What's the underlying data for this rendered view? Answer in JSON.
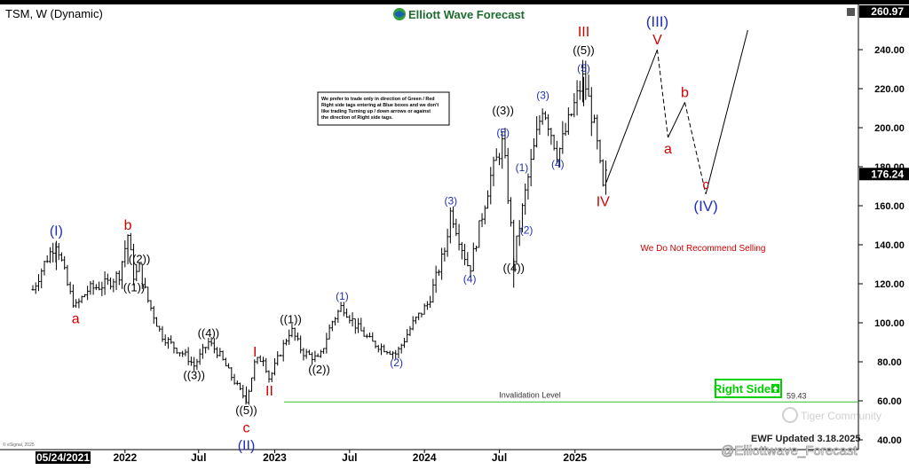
{
  "header": {
    "symbol": "TSM, W (Dynamic)",
    "brand": "Elliott Wave Forecast",
    "current_price": "176.24",
    "top_price": "260.97"
  },
  "notes": {
    "info_box": [
      "We prefer to trade only in direction of Green / Red",
      "Right side tags entering at Blue boxes and we don't",
      "like trading Turning up / down arrows or against",
      "the direction of Right side tags."
    ],
    "not_recommend": "We Do Not Recommend Selling",
    "invalidation_label": "Invalidation Level",
    "invalidation_value": "59.43",
    "right_side_tag": "Right Side",
    "updated": "EWF Updated 3.18.2025",
    "watermark_tiger": "Tiger Community",
    "watermark_handle": "@Elliottwave_Forecast",
    "start_date": "05/24/2021",
    "copyright": "© eSignal, 2025"
  },
  "colors": {
    "blue": "#1f2fb8",
    "red": "#d20000",
    "black": "#000000",
    "green": "#00d000",
    "invalidation": "#30c030"
  },
  "chart_data": {
    "type": "line",
    "title": "TSM, W (Dynamic)",
    "y_ticks": [
      40,
      60,
      80,
      100,
      120,
      140,
      160,
      180,
      200,
      220,
      240
    ],
    "ylim": [
      40,
      262
    ],
    "x_ticks": [
      "2022",
      "Jul",
      "2023",
      "Jul",
      "2024",
      "Jul",
      "2025"
    ],
    "price_path": [
      {
        "x": "2021-05-24",
        "y": 117
      },
      {
        "x": "2021-06-20",
        "y": 130
      },
      {
        "x": "2021-07-20",
        "y": 142
      },
      {
        "x": "2021-08-20",
        "y": 116
      },
      {
        "x": "2021-09-05",
        "y": 108
      },
      {
        "x": "2021-10-05",
        "y": 117
      },
      {
        "x": "2021-11-20",
        "y": 120
      },
      {
        "x": "2021-12-20",
        "y": 125
      },
      {
        "x": "2022-01-10",
        "y": 145
      },
      {
        "x": "2022-01-25",
        "y": 123
      },
      {
        "x": "2022-02-07",
        "y": 128
      },
      {
        "x": "2022-02-25",
        "y": 113
      },
      {
        "x": "2022-04-01",
        "y": 94
      },
      {
        "x": "2022-05-05",
        "y": 87
      },
      {
        "x": "2022-06-01",
        "y": 83
      },
      {
        "x": "2022-06-20",
        "y": 78
      },
      {
        "x": "2022-07-25",
        "y": 90
      },
      {
        "x": "2022-08-20",
        "y": 84
      },
      {
        "x": "2022-09-20",
        "y": 72
      },
      {
        "x": "2022-10-25",
        "y": 60
      },
      {
        "x": "2022-11-15",
        "y": 80
      },
      {
        "x": "2022-12-05",
        "y": 82
      },
      {
        "x": "2022-12-20",
        "y": 71
      },
      {
        "x": "2023-01-20",
        "y": 87
      },
      {
        "x": "2023-02-10",
        "y": 97
      },
      {
        "x": "2023-03-10",
        "y": 85
      },
      {
        "x": "2023-04-20",
        "y": 81
      },
      {
        "x": "2023-05-20",
        "y": 100
      },
      {
        "x": "2023-06-15",
        "y": 109
      },
      {
        "x": "2023-07-20",
        "y": 98
      },
      {
        "x": "2023-08-25",
        "y": 90
      },
      {
        "x": "2023-10-25",
        "y": 84
      },
      {
        "x": "2023-12-05",
        "y": 100
      },
      {
        "x": "2024-01-10",
        "y": 110
      },
      {
        "x": "2024-02-20",
        "y": 138
      },
      {
        "x": "2024-03-05",
        "y": 158
      },
      {
        "x": "2024-04-05",
        "y": 136
      },
      {
        "x": "2024-04-20",
        "y": 127
      },
      {
        "x": "2024-06-10",
        "y": 175
      },
      {
        "x": "2024-07-10",
        "y": 193
      },
      {
        "x": "2024-08-05",
        "y": 133
      },
      {
        "x": "2024-09-05",
        "y": 170
      },
      {
        "x": "2024-10-15",
        "y": 212
      },
      {
        "x": "2024-11-20",
        "y": 186
      },
      {
        "x": "2025-01-22",
        "y": 226
      },
      {
        "x": "2025-02-20",
        "y": 197
      },
      {
        "x": "2025-03-10",
        "y": 168
      },
      {
        "x": "2025-03-18",
        "y": 176.24
      }
    ],
    "projection": [
      {
        "x": "2025-03-18",
        "y": 172
      },
      {
        "x": "2025-07-20",
        "y": 240
      },
      {
        "x": "2025-08-15",
        "y": 195
      },
      {
        "x": "2025-09-25",
        "y": 213
      },
      {
        "x": "2025-11-15",
        "y": 166
      },
      {
        "x": "2026-02-25",
        "y": 250
      }
    ],
    "projection_dashed_segments": [
      1,
      3
    ],
    "invalidation_level": 59.43,
    "wave_labels": [
      {
        "text": "(I)",
        "x": "2021-07-20",
        "y": 142,
        "color": "blue",
        "pos": "above",
        "size": 16
      },
      {
        "text": "a",
        "x": "2021-09-05",
        "y": 108,
        "color": "red",
        "pos": "below",
        "size": 16
      },
      {
        "text": "b",
        "x": "2022-01-10",
        "y": 145,
        "color": "red",
        "pos": "above",
        "size": 16
      },
      {
        "text": "((1))",
        "x": "2022-01-25",
        "y": 123,
        "color": "black",
        "pos": "below",
        "size": 13
      },
      {
        "text": "((2))",
        "x": "2022-02-07",
        "y": 128,
        "color": "black",
        "pos": "above",
        "size": 13
      },
      {
        "text": "((3))",
        "x": "2022-06-20",
        "y": 78,
        "color": "black",
        "pos": "below",
        "size": 13
      },
      {
        "text": "((4))",
        "x": "2022-07-25",
        "y": 90,
        "color": "black",
        "pos": "above",
        "size": 13
      },
      {
        "text": "((5))",
        "x": "2022-10-25",
        "y": 60,
        "color": "black",
        "pos": "below",
        "size": 13
      },
      {
        "text": "c",
        "x": "2022-10-25",
        "y": 52,
        "color": "red",
        "pos": "below",
        "size": 16
      },
      {
        "text": "(II)",
        "x": "2022-10-25",
        "y": 43,
        "color": "blue",
        "pos": "below",
        "size": 16
      },
      {
        "text": "I",
        "x": "2022-11-15",
        "y": 80,
        "color": "red",
        "pos": "above",
        "size": 16
      },
      {
        "text": "II",
        "x": "2022-12-20",
        "y": 71,
        "color": "red",
        "pos": "below",
        "size": 16
      },
      {
        "text": "((1))",
        "x": "2023-02-10",
        "y": 97,
        "color": "black",
        "pos": "above",
        "size": 13
      },
      {
        "text": "((2))",
        "x": "2023-04-20",
        "y": 81,
        "color": "black",
        "pos": "below",
        "size": 13
      },
      {
        "text": "(1)",
        "x": "2023-06-15",
        "y": 109,
        "color": "blue",
        "pos": "above",
        "size": 12
      },
      {
        "text": "(2)",
        "x": "2023-10-25",
        "y": 84,
        "color": "blue",
        "pos": "below",
        "size": 12
      },
      {
        "text": "(3)",
        "x": "2024-03-05",
        "y": 158,
        "color": "blue",
        "pos": "above",
        "size": 12
      },
      {
        "text": "(4)",
        "x": "2024-04-20",
        "y": 127,
        "color": "blue",
        "pos": "below",
        "size": 12
      },
      {
        "text": "((3))",
        "x": "2024-07-10",
        "y": 204,
        "color": "black",
        "pos": "above",
        "size": 13
      },
      {
        "text": "(5)",
        "x": "2024-07-10",
        "y": 193,
        "color": "blue",
        "pos": "above",
        "size": 12
      },
      {
        "text": "((4))",
        "x": "2024-08-05",
        "y": 133,
        "color": "black",
        "pos": "below",
        "size": 13
      },
      {
        "text": "(1)",
        "x": "2024-08-25",
        "y": 175,
        "color": "blue",
        "pos": "above",
        "size": 12
      },
      {
        "text": "(2)",
        "x": "2024-09-05",
        "y": 152,
        "color": "blue",
        "pos": "below",
        "size": 12
      },
      {
        "text": "(3)",
        "x": "2024-10-15",
        "y": 212,
        "color": "blue",
        "pos": "above",
        "size": 12
      },
      {
        "text": "(4)",
        "x": "2024-11-20",
        "y": 186,
        "color": "blue",
        "pos": "below",
        "size": 12
      },
      {
        "text": "III",
        "x": "2025-01-22",
        "y": 244,
        "color": "red",
        "pos": "above",
        "size": 16
      },
      {
        "text": "((5))",
        "x": "2025-01-22",
        "y": 235,
        "color": "black",
        "pos": "above",
        "size": 13
      },
      {
        "text": "(5)",
        "x": "2025-01-22",
        "y": 226,
        "color": "blue",
        "pos": "above",
        "size": 12
      },
      {
        "text": "IV",
        "x": "2025-03-10",
        "y": 168,
        "color": "red",
        "pos": "below",
        "size": 16
      },
      {
        "text": "(III)",
        "x": "2025-07-20",
        "y": 249,
        "color": "blue",
        "pos": "above",
        "size": 17
      },
      {
        "text": "V",
        "x": "2025-07-20",
        "y": 240,
        "color": "red",
        "pos": "above",
        "size": 16
      },
      {
        "text": "a",
        "x": "2025-08-15",
        "y": 195,
        "color": "red",
        "pos": "below",
        "size": 16
      },
      {
        "text": "b",
        "x": "2025-09-25",
        "y": 213,
        "color": "red",
        "pos": "above",
        "size": 16
      },
      {
        "text": "c",
        "x": "2025-11-15",
        "y": 166,
        "color": "red",
        "pos": "above",
        "size": 15
      },
      {
        "text": "(IV)",
        "x": "2025-11-15",
        "y": 166,
        "color": "blue",
        "pos": "below",
        "size": 17
      }
    ]
  }
}
